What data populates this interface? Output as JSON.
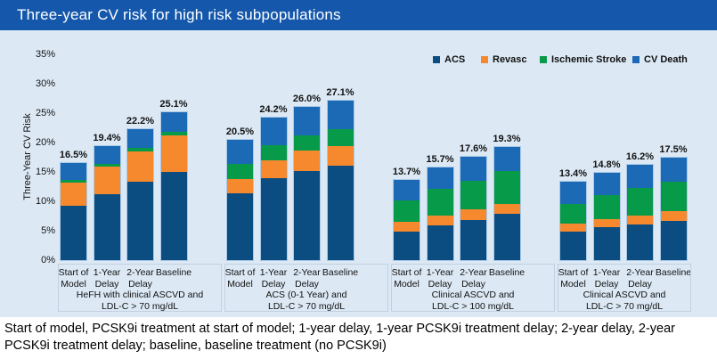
{
  "title": "Three-year CV risk for high risk subpopulations",
  "caption": "Start of model, PCSK9i treatment at start of model; 1-year delay, 1-year PCSK9i treatment delay; 2-year delay, 2-year PCSK9i treatment delay; baseline, baseline treatment (no PCSK9i)",
  "colors": {
    "banner": "#1558ab",
    "chart_background": "#dce9f5",
    "acs": "#0b4d80",
    "revasc": "#f6892d",
    "ischemic_stroke": "#079a48",
    "cv_death": "#1c69b6"
  },
  "chart_data": {
    "type": "bar",
    "stacked": true,
    "title": "Three-year CV risk for high risk subpopulations",
    "xlabel": "",
    "ylabel": "Three-Year CV Risk",
    "ylim": [
      0,
      35
    ],
    "yticks": [
      "0%",
      "5%",
      "10%",
      "15%",
      "20%",
      "25%",
      "30%",
      "35%"
    ],
    "grid": false,
    "legend_position": "top",
    "series": [
      {
        "name": "ACS",
        "color": "#0b4d80"
      },
      {
        "name": "Revasc",
        "color": "#f6892d"
      },
      {
        "name": "Ischemic Stroke",
        "color": "#079a48"
      },
      {
        "name": "CV Death",
        "color": "#1c69b6"
      }
    ],
    "bar_categories": [
      "Start of\nModel",
      "1-Year\nDelay",
      "2-Year\nDelay",
      "Baseline"
    ],
    "groups": [
      {
        "label": "HeFH with clinical ASCVD and\nLDL-C > 70 mg/dL",
        "bars": [
          {
            "category": "Start of\nModel",
            "total": 16.5,
            "total_label": "16.5%",
            "values": [
              9.3,
              3.9,
              0.5,
              2.8
            ]
          },
          {
            "category": "1-Year\nDelay",
            "total": 19.4,
            "total_label": "19.4%",
            "values": [
              11.2,
              4.7,
              0.5,
              3.0
            ]
          },
          {
            "category": "2-Year\nDelay",
            "total": 22.2,
            "total_label": "22.2%",
            "values": [
              13.3,
              5.2,
              0.6,
              3.1
            ]
          },
          {
            "category": "Baseline",
            "total": 25.1,
            "total_label": "25.1%",
            "values": [
              15.0,
              6.2,
              0.6,
              3.3
            ]
          }
        ]
      },
      {
        "label": "ACS (0-1 Year) and\nLDL-C > 70 mg/dL",
        "bars": [
          {
            "category": "Start of\nModel",
            "total": 20.5,
            "total_label": "20.5%",
            "values": [
              11.3,
              2.5,
              2.6,
              4.1
            ]
          },
          {
            "category": "1-Year\nDelay",
            "total": 24.2,
            "total_label": "24.2%",
            "values": [
              14.0,
              2.9,
              2.7,
              4.6
            ]
          },
          {
            "category": "2-Year\nDelay",
            "total": 26.0,
            "total_label": "26.0%",
            "values": [
              15.2,
              3.4,
              2.6,
              4.8
            ]
          },
          {
            "category": "Baseline",
            "total": 27.1,
            "total_label": "27.1%",
            "values": [
              16.1,
              3.3,
              2.8,
              4.9
            ]
          }
        ]
      },
      {
        "label": "Clinical ASCVD and\nLDL-C > 100 mg/dL",
        "bars": [
          {
            "category": "Start of\nModel",
            "total": 13.7,
            "total_label": "13.7%",
            "values": [
              4.8,
              1.7,
              3.6,
              3.6
            ]
          },
          {
            "category": "1-Year\nDelay",
            "total": 15.7,
            "total_label": "15.7%",
            "values": [
              5.9,
              1.7,
              4.5,
              3.6
            ]
          },
          {
            "category": "2-Year\nDelay",
            "total": 17.6,
            "total_label": "17.6%",
            "values": [
              6.8,
              1.8,
              4.9,
              4.1
            ]
          },
          {
            "category": "Baseline",
            "total": 19.3,
            "total_label": "19.3%",
            "values": [
              7.8,
              1.8,
              5.6,
              4.1
            ]
          }
        ]
      },
      {
        "label": "Clinical ASCVD and\nLDL-C > 70 mg/dL",
        "bars": [
          {
            "category": "Start of\nModel",
            "total": 13.4,
            "total_label": "13.4%",
            "values": [
              4.8,
              1.4,
              3.3,
              3.9
            ]
          },
          {
            "category": "1-Year\nDelay",
            "total": 14.8,
            "total_label": "14.8%",
            "values": [
              5.6,
              1.4,
              4.0,
              3.8
            ]
          },
          {
            "category": "2-Year\nDelay",
            "total": 16.2,
            "total_label": "16.2%",
            "values": [
              6.0,
              1.6,
              4.6,
              4.0
            ]
          },
          {
            "category": "Baseline",
            "total": 17.5,
            "total_label": "17.5%",
            "values": [
              6.6,
              1.8,
              4.9,
              4.2
            ]
          }
        ]
      }
    ]
  }
}
